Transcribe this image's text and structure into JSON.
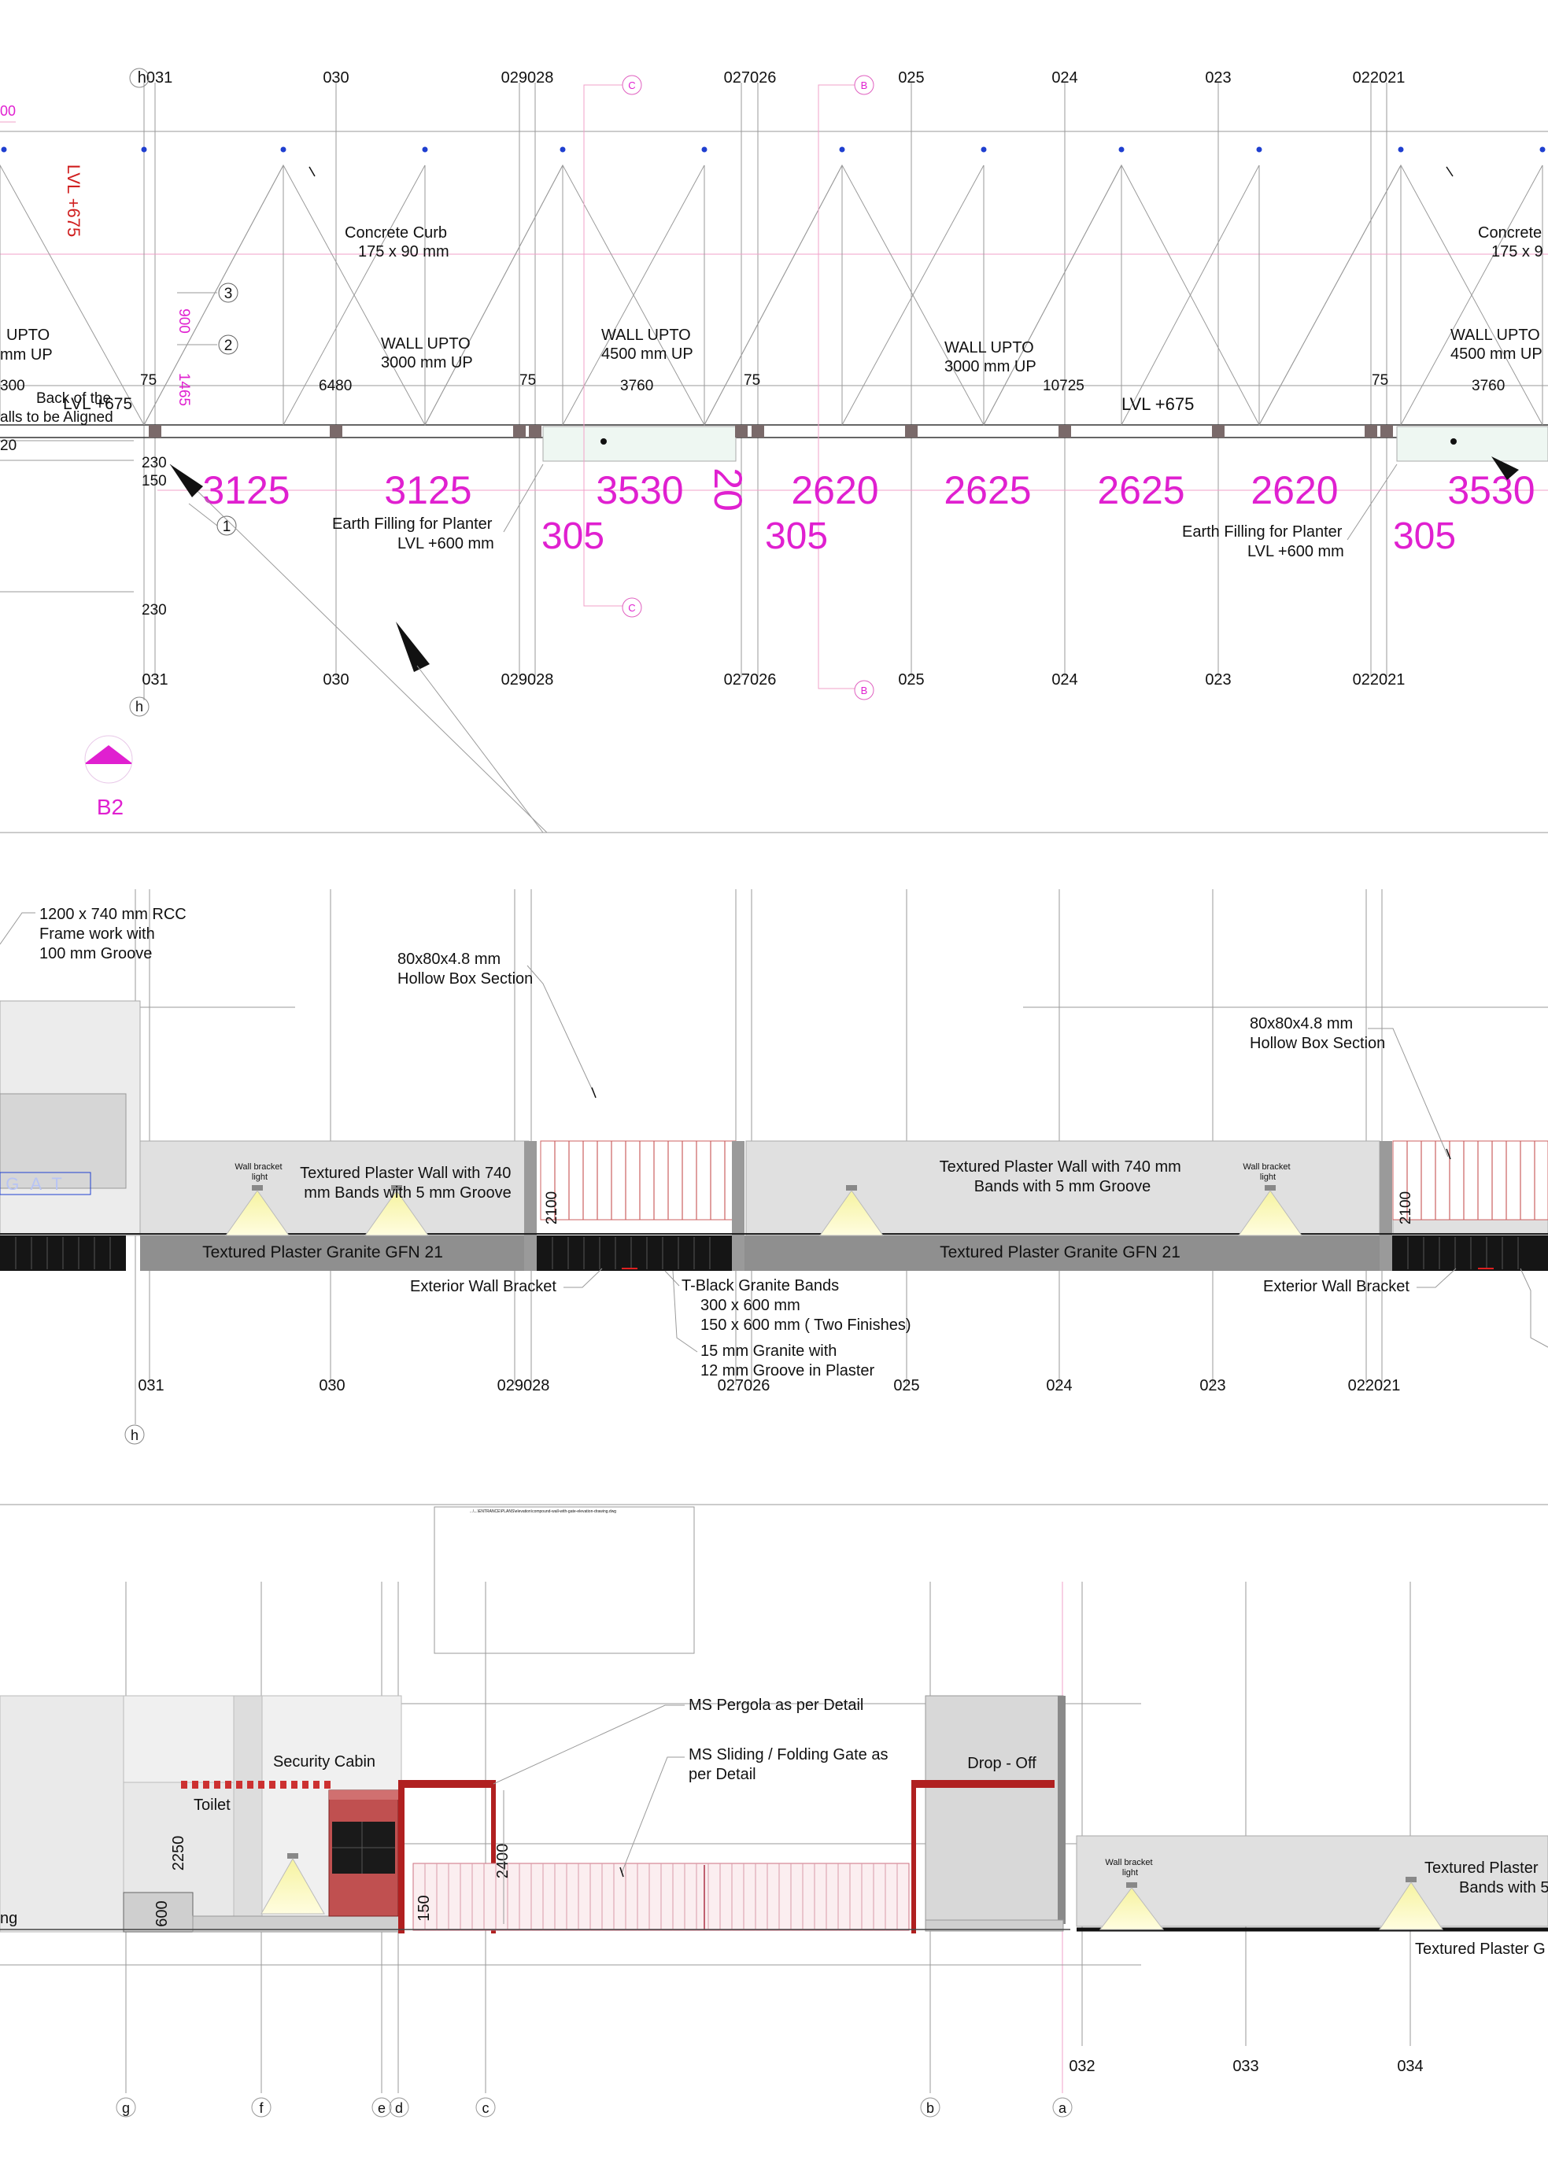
{
  "plan": {
    "grid_top": [
      "h031",
      "030",
      "029028",
      "027026",
      "025",
      "024",
      "023",
      "022021"
    ],
    "grid_bottom": [
      "031",
      "030",
      "029028",
      "027026",
      "025",
      "024",
      "023",
      "022021"
    ],
    "grid_h_label": "h",
    "lvl_675_vertical": "LVL +675",
    "dim_900": "900",
    "dim_1465": "1465",
    "left_partial_dim": "00",
    "concrete_curb": [
      "Concrete Curb",
      "175 x 90 mm"
    ],
    "concrete_curb_right": [
      "Concrete",
      "175 x 9"
    ],
    "wall_left": [
      "UPTO",
      "mm UP"
    ],
    "wall_3000a": [
      "WALL UPTO",
      "3000 mm UP"
    ],
    "wall_4500a": [
      "WALL UPTO",
      "4500 mm UP"
    ],
    "wall_3000b": [
      "WALL UPTO",
      "3000 mm UP"
    ],
    "wall_4500b": [
      "WALL UPTO",
      "4500 mm UP"
    ],
    "back_walls": [
      "Back of the",
      "alls to be Aligned"
    ],
    "lvl_675a": "LVL +675",
    "lvl_675b": "LVL +675",
    "small_dims": [
      "300",
      "75",
      "6480",
      "75",
      "3760",
      "75",
      "10725",
      "75",
      "3760",
      "20",
      "230",
      "150",
      "230"
    ],
    "big_dims": [
      "3125",
      "3125",
      "3530",
      "20",
      "2620",
      "2625",
      "2625",
      "2620",
      "3530"
    ],
    "big_305": [
      "305",
      "305",
      "305"
    ],
    "earth_a": [
      "Earth Filling for Planter",
      "LVL +600 mm"
    ],
    "earth_b": [
      "Earth Filling for Planter",
      "LVL +600 mm"
    ],
    "callouts": [
      "3",
      "2",
      "1"
    ],
    "section_c": "C",
    "section_b": "B",
    "section_marker": "B2"
  },
  "elev1": {
    "rcc": [
      "1200 x 740 mm RCC",
      "Frame work with",
      "100 mm Groove"
    ],
    "hollow_a": [
      "80x80x4.8 mm",
      "Hollow Box Section"
    ],
    "hollow_b": [
      "80x80x4.8 mm",
      "Hollow Box Section"
    ],
    "gate_text": "GAT",
    "plaster_wall_a": [
      "Textured Plaster Wall with 740",
      "mm Bands with 5 mm Groove"
    ],
    "plaster_wall_b": [
      "Textured Plaster Wall with 740 mm",
      "Bands with 5 mm Groove"
    ],
    "granite_a": "Textured Plaster Granite GFN 21",
    "granite_b": "Textured Plaster Granite GFN 21",
    "wall_bracket_light": [
      "Wall bracket",
      "light"
    ],
    "dim_2100": "2100",
    "ext_bracket_a": "Exterior Wall Bracket",
    "ext_bracket_b": "Exterior Wall Bracket",
    "tblack": [
      "T-Black Granite Bands",
      "300 x 600 mm",
      "150 x 600 mm ( Two Finishes)"
    ],
    "granite15": [
      "15 mm Granite with",
      "12 mm Groove in Plaster"
    ],
    "grid": [
      "031",
      "030",
      "029028",
      "027026",
      "025",
      "024",
      "023",
      "022021"
    ],
    "grid_h_label": "h"
  },
  "elev2": {
    "title_tiny": "...\\...\\ENTRANCE\\PLANS\\elevation\\compound-wall-with-gate-elevation-drawing.dwg",
    "pergola": "MS Pergola as per Detail",
    "gate": [
      "MS Sliding / Folding Gate as",
      "per Detail"
    ],
    "security": "Security Cabin",
    "toilet": "Toilet",
    "drop_off": "Drop - Off",
    "dim_2250": "2250",
    "dim_600": "600",
    "dim_2400": "2400",
    "dim_150": "150",
    "left_cut": "ng",
    "wall_bracket_light": [
      "Wall bracket",
      "light"
    ],
    "plaster_right": [
      "Textured Plaster",
      "Bands with 5"
    ],
    "granite_right": "Textured Plaster G",
    "grid_nums": [
      "032",
      "033",
      "034"
    ],
    "grid_letters": [
      "g",
      "f",
      "e",
      "d",
      "c",
      "b",
      "a"
    ]
  }
}
